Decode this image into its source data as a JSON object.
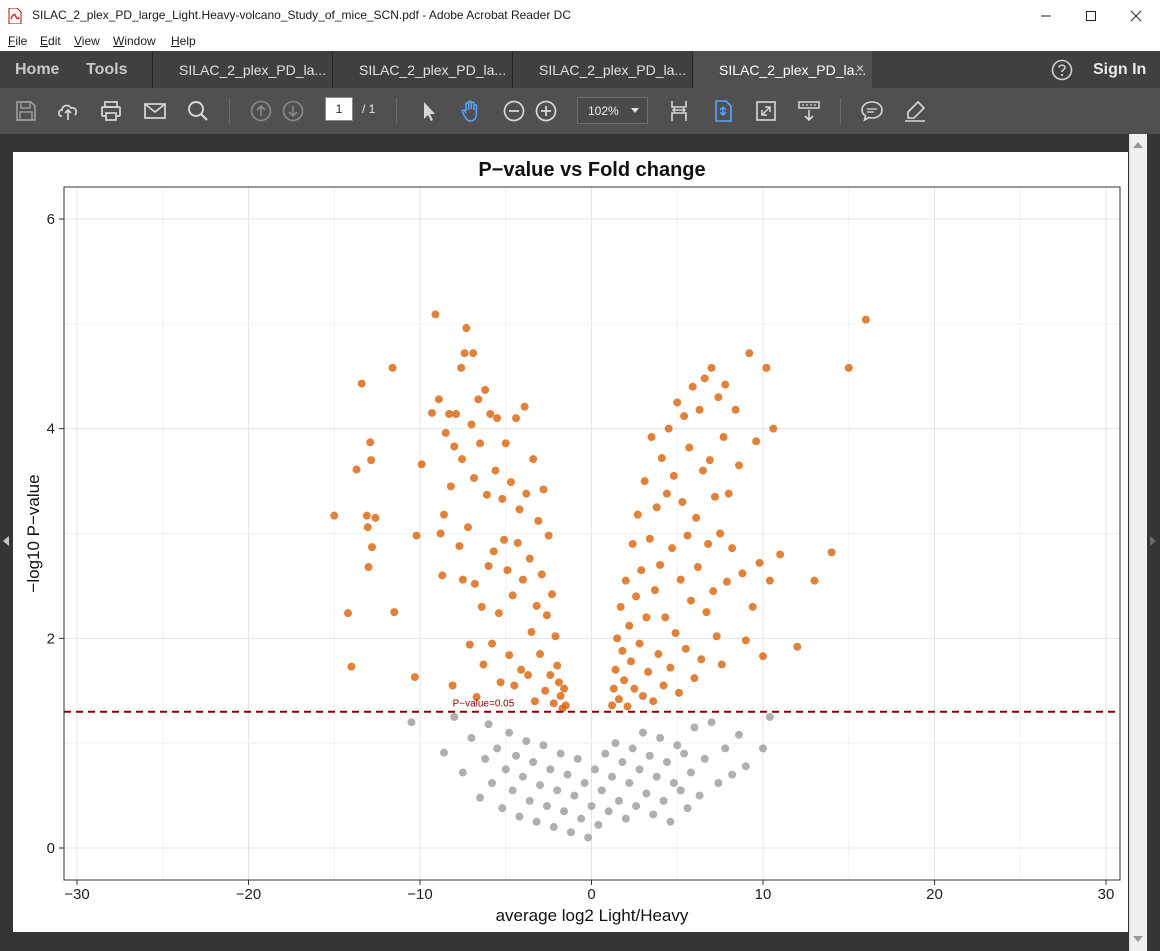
{
  "window": {
    "title": "SILAC_2_plex_PD_large_Light.Heavy-volcano_Study_of_mice_SCN.pdf - Adobe Acrobat Reader DC",
    "minimize": "—",
    "maximize": "☐",
    "close": "✕"
  },
  "menu": [
    {
      "first": "F",
      "rest": "ile"
    },
    {
      "first": "E",
      "rest": "dit"
    },
    {
      "first": "V",
      "rest": "iew"
    },
    {
      "first": "W",
      "rest": "indow"
    },
    {
      "first": "H",
      "rest": "elp"
    }
  ],
  "nav": {
    "home": "Home",
    "tools": "Tools",
    "signin": "Sign In"
  },
  "tabs": [
    {
      "label": "SILAC_2_plex_PD_la..."
    },
    {
      "label": "SILAC_2_plex_PD_la..."
    },
    {
      "label": "SILAC_2_plex_PD_la..."
    },
    {
      "label": "SILAC_2_plex_PD_la...",
      "close": "×"
    }
  ],
  "toolbar": {
    "page_current": "1",
    "page_total": "/ 1",
    "zoom": "102%",
    "icons": [
      "save-icon",
      "upload-icon",
      "print-icon",
      "email-icon",
      "search-icon",
      "page-up-icon",
      "page-down-icon",
      "select-arrow-icon",
      "hand-icon",
      "zoom-out-icon",
      "zoom-in-icon",
      "fit-width-icon",
      "fit-page-icon",
      "fullscreen-icon",
      "scroll-mode-icon",
      "comment-icon",
      "highlight-icon"
    ]
  },
  "colors": {
    "accent": "#58a6ff",
    "significant": "#d95f02",
    "nonsignificant": "#999999",
    "threshold": "#8b0000"
  },
  "chart_data": {
    "type": "scatter",
    "title": "P−value vs Fold change",
    "xlabel": "average log2 Light/Heavy",
    "ylabel": "−log10 P−value",
    "xlim": [
      -30,
      30
    ],
    "ylim": [
      0,
      6
    ],
    "xticks": [
      -30,
      -20,
      -10,
      0,
      10,
      20,
      30
    ],
    "xtick_labels": [
      "−30",
      "−20",
      "−10",
      "0",
      "10",
      "20",
      "30"
    ],
    "yticks": [
      0,
      2,
      4,
      6
    ],
    "grid": true,
    "threshold": {
      "y": 1.3,
      "label": "P−value=0.05"
    },
    "series": [
      {
        "color": "#d95f02",
        "points": [
          [
            -15,
            3.17
          ],
          [
            -14.2,
            2.24
          ],
          [
            -14,
            1.73
          ],
          [
            -13.7,
            3.61
          ],
          [
            -13.4,
            4.43
          ],
          [
            -13.1,
            3.17
          ],
          [
            -13.05,
            3.06
          ],
          [
            -13,
            2.68
          ],
          [
            -12.9,
            3.87
          ],
          [
            -12.85,
            3.7
          ],
          [
            -12.8,
            2.87
          ],
          [
            -12.6,
            3.15
          ],
          [
            -11.6,
            4.58
          ],
          [
            -11.5,
            2.25
          ],
          [
            -10.3,
            1.63
          ],
          [
            -10.2,
            2.98
          ],
          [
            -9.9,
            3.66
          ],
          [
            -9.3,
            4.15
          ],
          [
            -9.1,
            5.09
          ],
          [
            -8.9,
            4.28
          ],
          [
            -8.8,
            3.0
          ],
          [
            -8.7,
            2.6
          ],
          [
            -8.6,
            3.18
          ],
          [
            -8.5,
            3.96
          ],
          [
            -8.3,
            4.14
          ],
          [
            -8.2,
            3.45
          ],
          [
            -8.1,
            1.55
          ],
          [
            -8.0,
            3.83
          ],
          [
            -7.9,
            4.14
          ],
          [
            -7.7,
            2.88
          ],
          [
            -7.6,
            4.58
          ],
          [
            -7.55,
            3.71
          ],
          [
            -7.5,
            2.56
          ],
          [
            -7.4,
            4.72
          ],
          [
            -7.3,
            4.96
          ],
          [
            -7.2,
            3.06
          ],
          [
            -7.1,
            1.94
          ],
          [
            -7.0,
            4.04
          ],
          [
            -6.9,
            4.72
          ],
          [
            -6.85,
            3.53
          ],
          [
            -6.8,
            2.52
          ],
          [
            -6.7,
            1.44
          ],
          [
            -6.6,
            4.28
          ],
          [
            -6.5,
            3.86
          ],
          [
            -6.4,
            2.3
          ],
          [
            -6.3,
            1.75
          ],
          [
            -6.2,
            4.37
          ],
          [
            -6.1,
            3.37
          ],
          [
            -6.0,
            2.69
          ],
          [
            -5.9,
            4.14
          ],
          [
            -5.8,
            1.95
          ],
          [
            -5.7,
            2.83
          ],
          [
            -5.6,
            3.6
          ],
          [
            -5.5,
            4.1
          ],
          [
            -5.4,
            2.24
          ],
          [
            -5.3,
            1.58
          ],
          [
            -5.2,
            3.33
          ],
          [
            -5.1,
            2.94
          ],
          [
            -5.0,
            3.86
          ],
          [
            -4.9,
            2.65
          ],
          [
            -4.8,
            1.84
          ],
          [
            -4.7,
            3.49
          ],
          [
            -4.6,
            2.41
          ],
          [
            -4.5,
            1.55
          ],
          [
            -4.4,
            4.1
          ],
          [
            -4.3,
            2.91
          ],
          [
            -4.2,
            3.23
          ],
          [
            -4.1,
            1.7
          ],
          [
            -4.0,
            2.56
          ],
          [
            -3.9,
            4.21
          ],
          [
            -3.8,
            3.38
          ],
          [
            -3.7,
            1.65
          ],
          [
            -3.6,
            2.76
          ],
          [
            -3.5,
            2.06
          ],
          [
            -3.4,
            3.71
          ],
          [
            -3.3,
            1.4
          ],
          [
            -3.2,
            2.31
          ],
          [
            -3.1,
            3.12
          ],
          [
            -3.0,
            1.85
          ],
          [
            -2.9,
            2.61
          ],
          [
            -2.8,
            3.42
          ],
          [
            -2.7,
            1.5
          ],
          [
            -2.6,
            2.22
          ],
          [
            -2.5,
            2.98
          ],
          [
            -2.4,
            1.65
          ],
          [
            -2.3,
            2.42
          ],
          [
            -2.2,
            1.38
          ],
          [
            -2.1,
            2.02
          ],
          [
            -2.0,
            1.74
          ],
          [
            -1.9,
            1.58
          ],
          [
            -1.8,
            1.45
          ],
          [
            -1.7,
            1.33
          ],
          [
            -1.6,
            1.52
          ],
          [
            -1.5,
            1.36
          ],
          [
            1.2,
            1.36
          ],
          [
            1.3,
            1.52
          ],
          [
            1.4,
            1.7
          ],
          [
            1.5,
            2.0
          ],
          [
            1.6,
            1.42
          ],
          [
            1.7,
            2.3
          ],
          [
            1.8,
            1.88
          ],
          [
            1.9,
            1.6
          ],
          [
            2.0,
            2.55
          ],
          [
            2.1,
            1.35
          ],
          [
            2.2,
            2.12
          ],
          [
            2.3,
            1.78
          ],
          [
            2.4,
            2.9
          ],
          [
            2.5,
            1.52
          ],
          [
            2.6,
            2.4
          ],
          [
            2.7,
            3.18
          ],
          [
            2.8,
            1.95
          ],
          [
            2.9,
            2.65
          ],
          [
            3.0,
            1.45
          ],
          [
            3.1,
            3.5
          ],
          [
            3.2,
            2.2
          ],
          [
            3.3,
            1.68
          ],
          [
            3.4,
            2.95
          ],
          [
            3.5,
            3.92
          ],
          [
            3.6,
            1.4
          ],
          [
            3.7,
            2.46
          ],
          [
            3.8,
            3.25
          ],
          [
            3.9,
            1.85
          ],
          [
            4.0,
            2.7
          ],
          [
            4.1,
            3.72
          ],
          [
            4.2,
            1.55
          ],
          [
            4.3,
            2.2
          ],
          [
            4.4,
            3.38
          ],
          [
            4.5,
            4.0
          ],
          [
            4.6,
            1.72
          ],
          [
            4.7,
            2.86
          ],
          [
            4.8,
            3.55
          ],
          [
            4.9,
            2.05
          ],
          [
            5.0,
            4.25
          ],
          [
            5.1,
            1.48
          ],
          [
            5.2,
            2.56
          ],
          [
            5.3,
            3.3
          ],
          [
            5.4,
            4.12
          ],
          [
            5.5,
            1.9
          ],
          [
            5.6,
            2.98
          ],
          [
            5.7,
            3.82
          ],
          [
            5.8,
            2.36
          ],
          [
            5.9,
            4.4
          ],
          [
            6.0,
            1.62
          ],
          [
            6.1,
            3.15
          ],
          [
            6.2,
            2.68
          ],
          [
            6.3,
            4.18
          ],
          [
            6.4,
            1.8
          ],
          [
            6.5,
            3.6
          ],
          [
            6.6,
            4.48
          ],
          [
            6.7,
            2.25
          ],
          [
            6.8,
            2.9
          ],
          [
            6.9,
            3.7
          ],
          [
            7.0,
            4.58
          ],
          [
            7.1,
            2.45
          ],
          [
            7.2,
            3.35
          ],
          [
            7.3,
            2.02
          ],
          [
            7.4,
            4.3
          ],
          [
            7.5,
            3.0
          ],
          [
            7.6,
            1.75
          ],
          [
            7.7,
            3.92
          ],
          [
            7.8,
            4.42
          ],
          [
            7.9,
            2.54
          ],
          [
            8.0,
            3.38
          ],
          [
            8.2,
            2.86
          ],
          [
            8.4,
            4.18
          ],
          [
            8.6,
            3.65
          ],
          [
            8.8,
            2.62
          ],
          [
            9.0,
            1.98
          ],
          [
            9.2,
            4.72
          ],
          [
            9.4,
            2.3
          ],
          [
            9.6,
            3.88
          ],
          [
            9.8,
            2.72
          ],
          [
            10.0,
            1.83
          ],
          [
            10.2,
            4.58
          ],
          [
            10.4,
            2.55
          ],
          [
            10.6,
            4.0
          ],
          [
            11.0,
            2.8
          ],
          [
            12.0,
            1.92
          ],
          [
            13.0,
            2.55
          ],
          [
            14.0,
            2.82
          ],
          [
            15.0,
            4.58
          ],
          [
            16.0,
            5.04
          ]
        ]
      },
      {
        "color": "#999999",
        "points": [
          [
            -10.5,
            1.2
          ],
          [
            -8.6,
            0.91
          ],
          [
            -8.0,
            1.25
          ],
          [
            -7.5,
            0.72
          ],
          [
            -7.0,
            1.05
          ],
          [
            -6.5,
            0.48
          ],
          [
            -6.2,
            0.85
          ],
          [
            -6.0,
            1.18
          ],
          [
            -5.8,
            0.62
          ],
          [
            -5.5,
            0.95
          ],
          [
            -5.2,
            0.38
          ],
          [
            -5.0,
            0.75
          ],
          [
            -4.8,
            1.1
          ],
          [
            -4.6,
            0.55
          ],
          [
            -4.4,
            0.88
          ],
          [
            -4.2,
            0.3
          ],
          [
            -4.0,
            0.68
          ],
          [
            -3.8,
            1.02
          ],
          [
            -3.6,
            0.45
          ],
          [
            -3.4,
            0.82
          ],
          [
            -3.2,
            0.25
          ],
          [
            -3.0,
            0.6
          ],
          [
            -2.8,
            0.98
          ],
          [
            -2.6,
            0.4
          ],
          [
            -2.4,
            0.75
          ],
          [
            -2.2,
            0.2
          ],
          [
            -2.0,
            0.55
          ],
          [
            -1.8,
            0.9
          ],
          [
            -1.6,
            0.35
          ],
          [
            -1.4,
            0.7
          ],
          [
            -1.2,
            0.15
          ],
          [
            -1.0,
            0.5
          ],
          [
            -0.8,
            0.85
          ],
          [
            -0.6,
            0.28
          ],
          [
            -0.4,
            0.62
          ],
          [
            -0.2,
            0.1
          ],
          [
            0.0,
            0.4
          ],
          [
            0.2,
            0.75
          ],
          [
            0.4,
            0.22
          ],
          [
            0.6,
            0.55
          ],
          [
            0.8,
            0.9
          ],
          [
            1.0,
            0.35
          ],
          [
            1.2,
            0.68
          ],
          [
            1.4,
            1.0
          ],
          [
            1.6,
            0.45
          ],
          [
            1.8,
            0.82
          ],
          [
            2.0,
            0.28
          ],
          [
            2.2,
            0.62
          ],
          [
            2.4,
            0.95
          ],
          [
            2.6,
            0.4
          ],
          [
            2.8,
            0.75
          ],
          [
            3.0,
            1.1
          ],
          [
            3.2,
            0.52
          ],
          [
            3.4,
            0.88
          ],
          [
            3.6,
            0.32
          ],
          [
            3.8,
            0.68
          ],
          [
            4.0,
            1.05
          ],
          [
            4.2,
            0.45
          ],
          [
            4.4,
            0.82
          ],
          [
            4.6,
            0.25
          ],
          [
            4.8,
            0.62
          ],
          [
            5.0,
            0.98
          ],
          [
            5.2,
            0.55
          ],
          [
            5.4,
            0.9
          ],
          [
            5.6,
            0.38
          ],
          [
            5.8,
            0.72
          ],
          [
            6.0,
            1.15
          ],
          [
            6.3,
            0.5
          ],
          [
            6.6,
            0.85
          ],
          [
            7.0,
            1.2
          ],
          [
            7.4,
            0.62
          ],
          [
            7.8,
            0.95
          ],
          [
            8.2,
            0.7
          ],
          [
            8.6,
            1.08
          ],
          [
            9.0,
            0.78
          ],
          [
            10.0,
            0.95
          ],
          [
            10.4,
            1.25
          ]
        ]
      }
    ]
  }
}
